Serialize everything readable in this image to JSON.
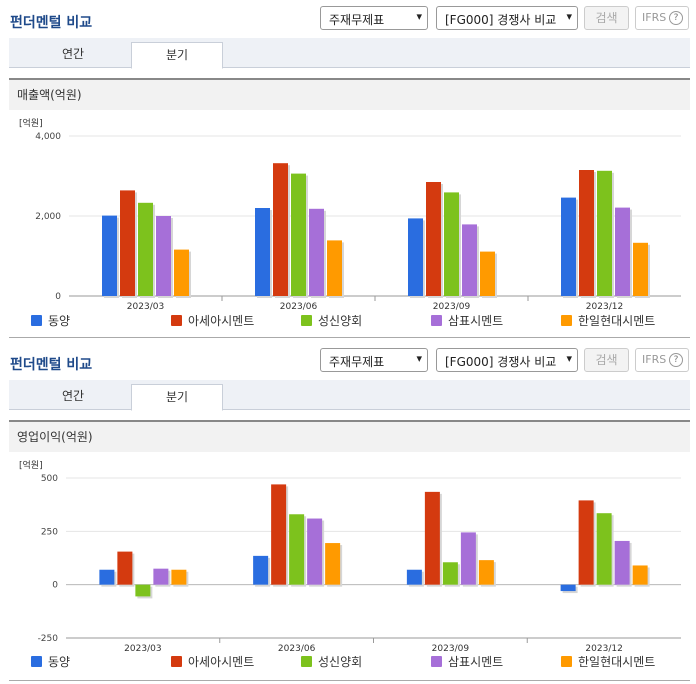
{
  "panels": [
    {
      "title": "펀더멘털 비교",
      "select1": "주재무제표",
      "select2": "[FG000] 경쟁사 비교",
      "search_label": "검색",
      "ifrs_label": "IFRS",
      "ifrs_help": "?",
      "tabs": [
        {
          "label": "연간"
        },
        {
          "label": "분기"
        }
      ],
      "active_tab": "분기",
      "section_title": "매출액(억원)"
    },
    {
      "title": "펀더멘털 비교",
      "select1": "주재무제표",
      "select2": "[FG000] 경쟁사 비교",
      "search_label": "검색",
      "ifrs_label": "IFRS",
      "ifrs_help": "?",
      "tabs": [
        {
          "label": "연간"
        },
        {
          "label": "분기"
        }
      ],
      "active_tab": "분기",
      "section_title": "영업이익(억원)"
    }
  ],
  "legend": [
    {
      "name": "동양",
      "color": "#2a6de0"
    },
    {
      "name": "아세아시멘트",
      "color": "#d43a0f"
    },
    {
      "name": "성신양회",
      "color": "#7dc21d"
    },
    {
      "name": "삼표시멘트",
      "color": "#a66fd8"
    },
    {
      "name": "한일현대시멘트",
      "color": "#ff9a00"
    }
  ],
  "chart_data": [
    {
      "type": "bar",
      "unit_label": "[억원]",
      "categories": [
        "2023/03",
        "2023/06",
        "2023/09",
        "2023/12"
      ],
      "ylim": [
        0,
        4000
      ],
      "yticks": [
        "4,000",
        "2,000",
        "0"
      ],
      "ytick_values": [
        4000,
        2000,
        0
      ],
      "grid": true,
      "legend_position": "bottom",
      "series": [
        {
          "name": "동양",
          "color": "#2a6de0",
          "values": [
            2010,
            2200,
            1940,
            2460
          ]
        },
        {
          "name": "아세아시멘트",
          "color": "#d43a0f",
          "values": [
            2640,
            3320,
            2850,
            3150
          ]
        },
        {
          "name": "성신양회",
          "color": "#7dc21d",
          "values": [
            2330,
            3060,
            2590,
            3130
          ]
        },
        {
          "name": "삼표시멘트",
          "color": "#a66fd8",
          "values": [
            2000,
            2180,
            1790,
            2210
          ]
        },
        {
          "name": "한일현대시멘트",
          "color": "#ff9a00",
          "values": [
            1160,
            1390,
            1110,
            1330
          ]
        }
      ]
    },
    {
      "type": "bar",
      "unit_label": "[억원]",
      "categories": [
        "2023/03",
        "2023/06",
        "2023/09",
        "2023/12"
      ],
      "ylim": [
        -250,
        500
      ],
      "yticks": [
        "500",
        "250",
        "0",
        "-250"
      ],
      "ytick_values": [
        500,
        250,
        0,
        -250
      ],
      "grid": true,
      "legend_position": "bottom",
      "series": [
        {
          "name": "동양",
          "color": "#2a6de0",
          "values": [
            70,
            135,
            70,
            -30
          ]
        },
        {
          "name": "아세아시멘트",
          "color": "#d43a0f",
          "values": [
            155,
            470,
            435,
            395
          ]
        },
        {
          "name": "성신양회",
          "color": "#7dc21d",
          "values": [
            -55,
            330,
            105,
            335
          ]
        },
        {
          "name": "삼표시멘트",
          "color": "#a66fd8",
          "values": [
            75,
            310,
            245,
            205
          ]
        },
        {
          "name": "한일현대시멘트",
          "color": "#ff9a00",
          "values": [
            70,
            195,
            115,
            90
          ]
        }
      ]
    }
  ]
}
